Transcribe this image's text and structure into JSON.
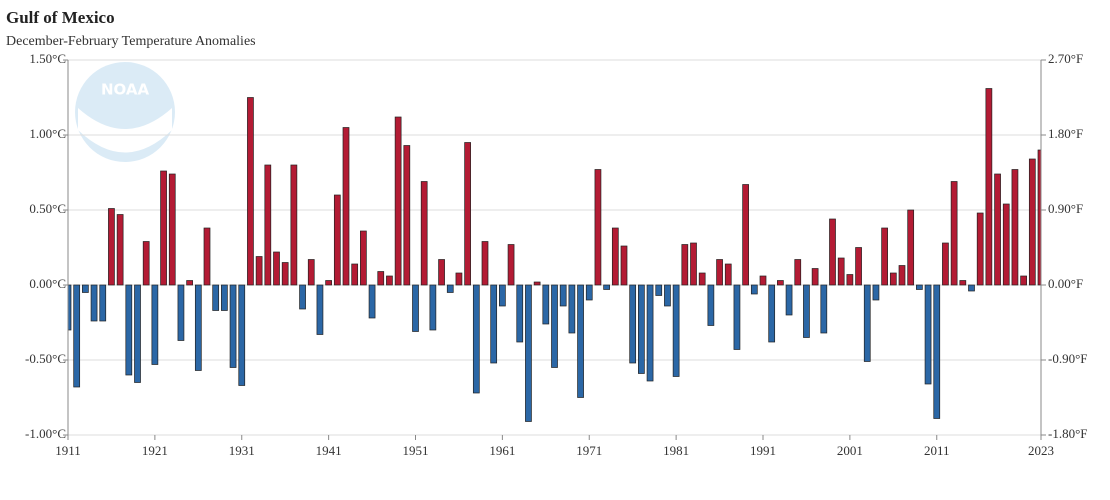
{
  "chart_data": {
    "type": "bar",
    "title": "Gulf of Mexico",
    "subtitle": "December-February Temperature Anomalies",
    "logo": "NOAA",
    "x": [
      1911,
      1912,
      1913,
      1914,
      1915,
      1916,
      1917,
      1918,
      1919,
      1920,
      1921,
      1922,
      1923,
      1924,
      1925,
      1926,
      1927,
      1928,
      1929,
      1930,
      1931,
      1932,
      1933,
      1934,
      1935,
      1936,
      1937,
      1938,
      1939,
      1940,
      1941,
      1942,
      1943,
      1944,
      1945,
      1946,
      1947,
      1948,
      1949,
      1950,
      1951,
      1952,
      1953,
      1954,
      1955,
      1956,
      1957,
      1958,
      1959,
      1960,
      1961,
      1962,
      1963,
      1964,
      1965,
      1966,
      1967,
      1968,
      1969,
      1970,
      1971,
      1972,
      1973,
      1974,
      1975,
      1976,
      1977,
      1978,
      1979,
      1980,
      1981,
      1982,
      1983,
      1984,
      1985,
      1986,
      1987,
      1988,
      1989,
      1990,
      1991,
      1992,
      1993,
      1994,
      1995,
      1996,
      1997,
      1998,
      1999,
      2000,
      2001,
      2002,
      2003,
      2004,
      2005,
      2006,
      2007,
      2008,
      2009,
      2010,
      2011,
      2012,
      2013,
      2014,
      2015,
      2016,
      2017,
      2018,
      2019,
      2020,
      2021,
      2022,
      2023
    ],
    "values": [
      -0.3,
      -0.68,
      -0.05,
      -0.24,
      -0.24,
      0.51,
      0.47,
      -0.6,
      -0.65,
      0.29,
      -0.53,
      0.76,
      0.74,
      -0.37,
      0.03,
      -0.57,
      0.38,
      -0.17,
      -0.17,
      -0.55,
      -0.67,
      1.25,
      0.19,
      0.8,
      0.22,
      0.15,
      0.8,
      -0.16,
      0.17,
      -0.33,
      0.03,
      0.6,
      1.05,
      0.14,
      0.36,
      -0.22,
      0.09,
      0.06,
      1.12,
      0.93,
      -0.31,
      0.69,
      -0.3,
      0.17,
      -0.05,
      0.08,
      0.95,
      -0.72,
      0.29,
      -0.52,
      -0.14,
      0.27,
      -0.38,
      -0.91,
      0.02,
      -0.26,
      -0.55,
      -0.14,
      -0.32,
      -0.75,
      -0.1,
      0.77,
      -0.03,
      0.38,
      0.26,
      -0.52,
      -0.59,
      -0.64,
      -0.07,
      -0.14,
      -0.61,
      0.27,
      0.28,
      0.08,
      -0.27,
      0.17,
      0.14,
      -0.43,
      0.67,
      -0.06,
      0.06,
      -0.38,
      0.03,
      -0.2,
      0.17,
      -0.35,
      0.11,
      -0.32,
      0.44,
      0.18,
      0.07,
      0.25,
      -0.51,
      -0.1,
      0.38,
      0.08,
      0.13,
      0.5,
      -0.03,
      -0.66,
      -0.89,
      0.28,
      0.69,
      0.03,
      -0.04,
      0.48,
      1.31,
      0.74,
      0.54,
      0.77,
      0.06,
      0.84,
      0.9
    ],
    "positive_color": "#b31b34",
    "negative_color": "#2b67a6",
    "xlim": [
      1911,
      2023
    ],
    "xticks": [
      1911,
      1921,
      1931,
      1941,
      1951,
      1961,
      1971,
      1981,
      1991,
      2001,
      2011,
      2023
    ],
    "ylim": [
      -1.0,
      1.5
    ],
    "yticks": [
      {
        "value": -1.0,
        "label": "-1.00°C"
      },
      {
        "value": -0.5,
        "label": "-0.50°C"
      },
      {
        "value": 0,
        "label": "0.00°C"
      },
      {
        "value": 0.5,
        "label": "0.50°C"
      },
      {
        "value": 1.0,
        "label": "1.00°C"
      },
      {
        "value": 1.5,
        "label": "1.50°C"
      }
    ],
    "y2lim": [
      -1.8,
      2.7
    ],
    "y2ticks": [
      {
        "value": -1.8,
        "label": "-1.80°F"
      },
      {
        "value": -0.9,
        "label": "-0.90°F"
      },
      {
        "value": 0,
        "label": "0.00°F"
      },
      {
        "value": 0.9,
        "label": "0.90°F"
      },
      {
        "value": 1.8,
        "label": "1.80°F"
      },
      {
        "value": 2.7,
        "label": "2.70°F"
      }
    ],
    "grid": true
  }
}
